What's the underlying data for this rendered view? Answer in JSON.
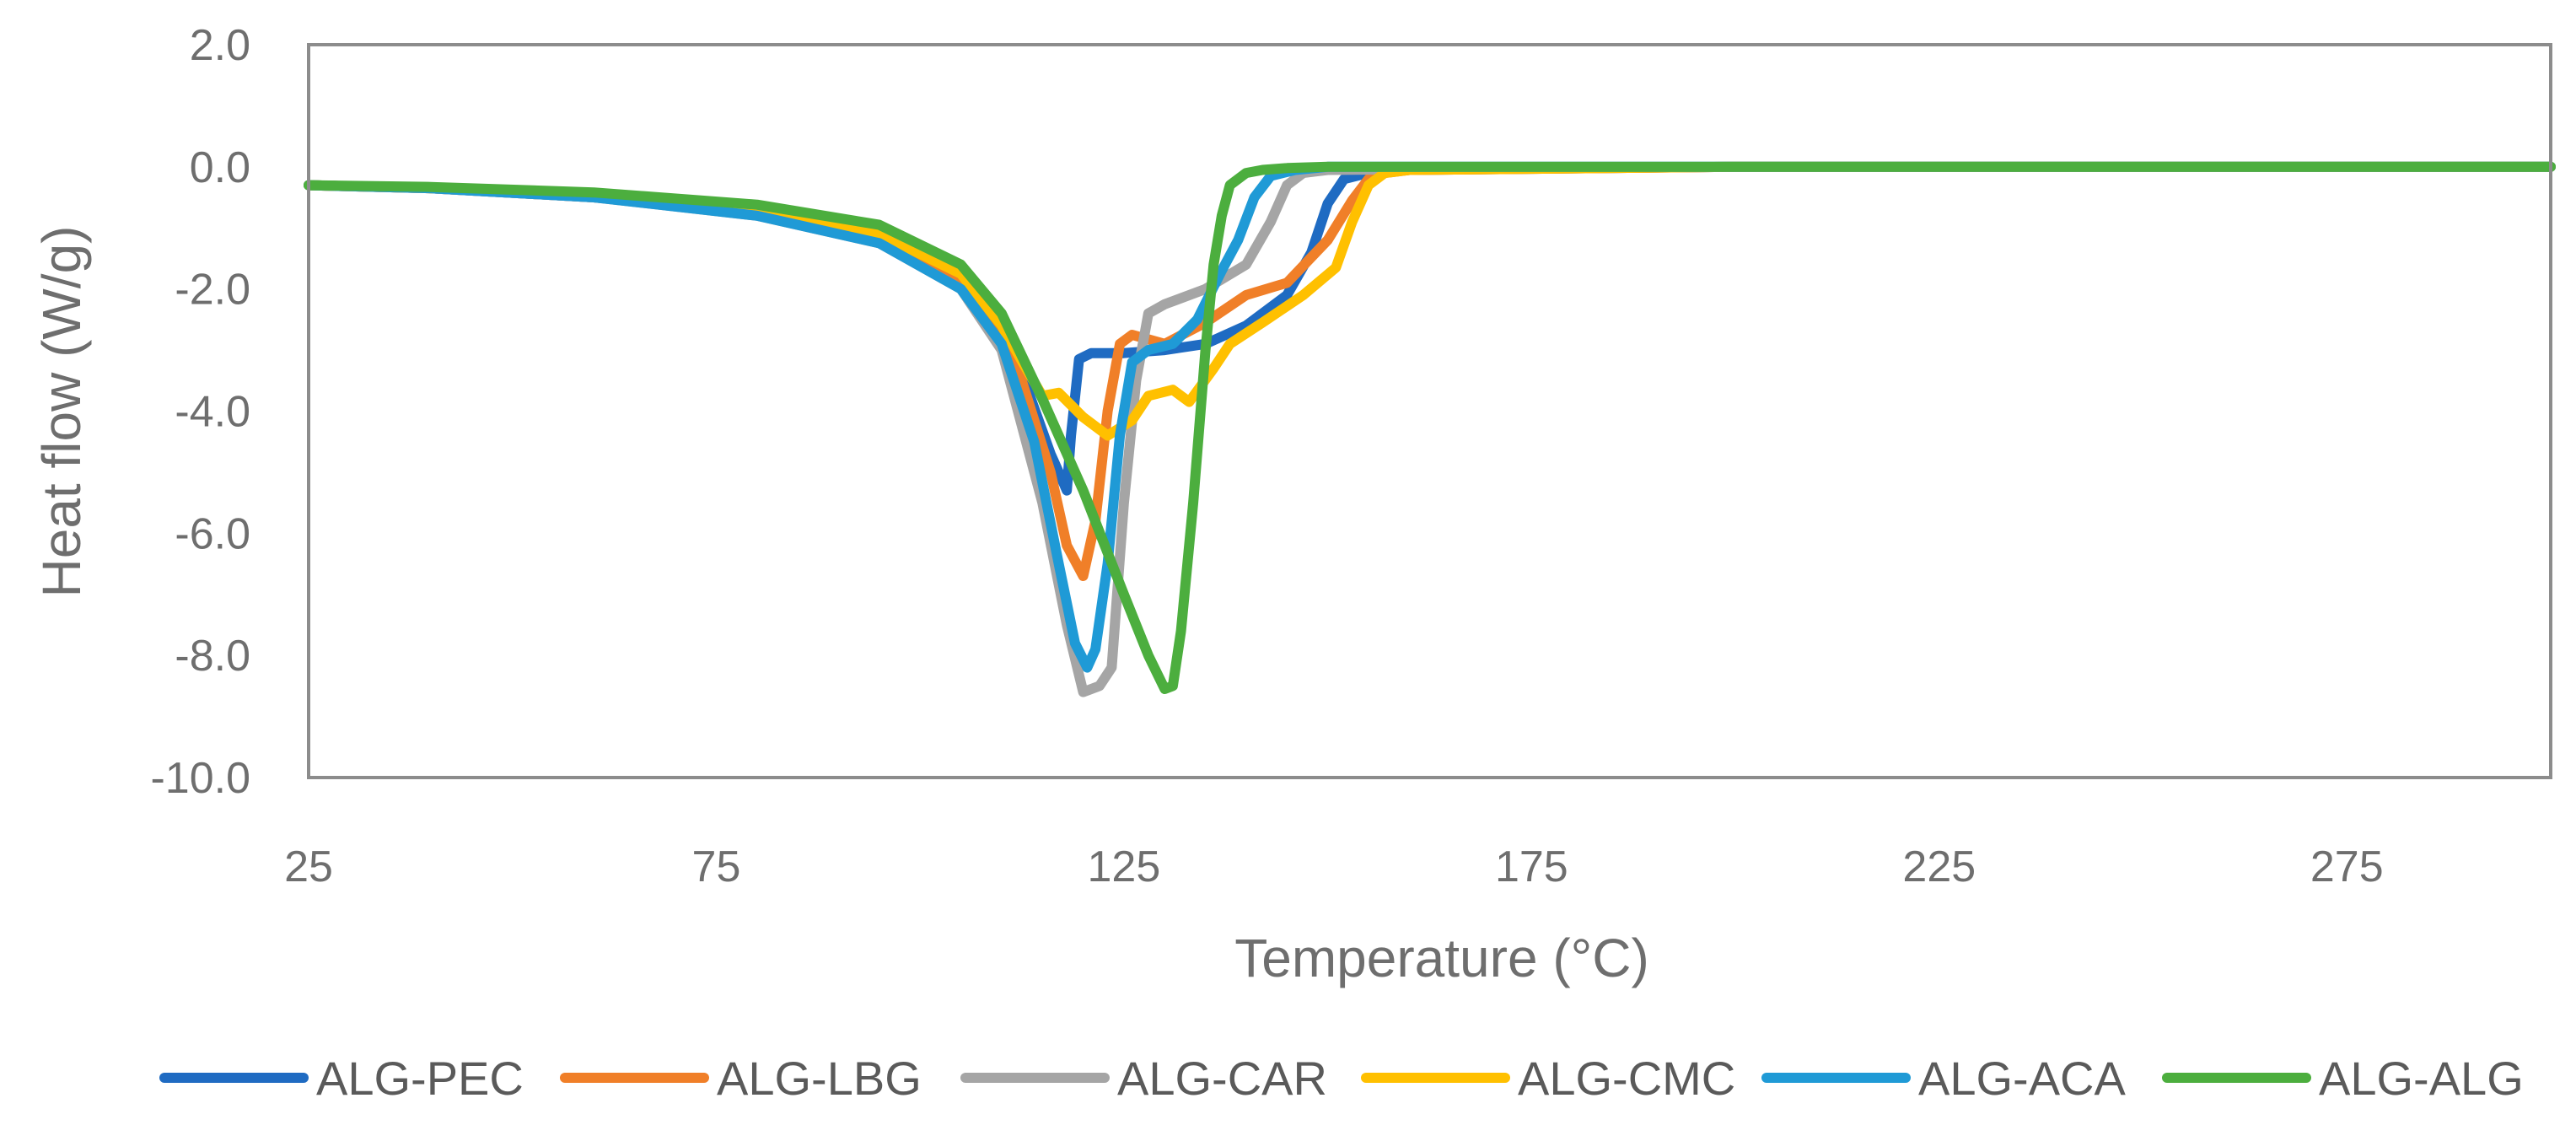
{
  "chart_data": {
    "type": "line",
    "title": "",
    "xlabel": "Temperature (°C)",
    "ylabel": "Heat flow (W/g)",
    "xlim": [
      25,
      300
    ],
    "ylim": [
      -10,
      2
    ],
    "xticks": [
      25,
      75,
      125,
      175,
      225,
      275
    ],
    "xtick_labels": [
      "25",
      "75",
      "125",
      "175",
      "225",
      "275"
    ],
    "yticks": [
      2,
      0,
      -2,
      -4,
      -6,
      -8,
      -10
    ],
    "ytick_labels": [
      "2.0",
      "0.0",
      "-2.0",
      "-4.0",
      "-6.0",
      "-8.0",
      "-10.0"
    ],
    "grid": false,
    "legend_position": "bottom",
    "series": [
      {
        "name": "ALG-PEC",
        "color": "#1f6bc2",
        "x": [
          25,
          40,
          60,
          80,
          95,
          105,
          112,
          116,
          118,
          118.5,
          119.5,
          121,
          125,
          130,
          135,
          140,
          145,
          148,
          150,
          152,
          155,
          160,
          200,
          250,
          300
        ],
        "y": [
          -0.3,
          -0.35,
          -0.5,
          -0.75,
          -1.15,
          -1.9,
          -3.2,
          -4.7,
          -5.3,
          -4.4,
          -3.15,
          -3.05,
          -3.05,
          -3.0,
          -2.9,
          -2.6,
          -2.1,
          -1.4,
          -0.6,
          -0.2,
          -0.1,
          -0.05,
          0.0,
          0.0,
          0.0
        ]
      },
      {
        "name": "ALG-LBG",
        "color": "#f07f28",
        "x": [
          25,
          40,
          60,
          80,
          95,
          105,
          112,
          116,
          118,
          120,
          121.5,
          123,
          124.5,
          126,
          130,
          135,
          140,
          145,
          150,
          153,
          155,
          157,
          160,
          200,
          250,
          300
        ],
        "y": [
          -0.3,
          -0.35,
          -0.5,
          -0.75,
          -1.15,
          -1.9,
          -3.3,
          -5.0,
          -6.2,
          -6.7,
          -5.8,
          -4.0,
          -2.9,
          -2.75,
          -2.9,
          -2.55,
          -2.1,
          -1.9,
          -1.2,
          -0.55,
          -0.2,
          -0.1,
          -0.05,
          0.0,
          0.0,
          0.0
        ]
      },
      {
        "name": "ALG-CAR",
        "color": "#a5a5a5",
        "x": [
          25,
          40,
          60,
          80,
          95,
          105,
          110,
          115,
          118,
          120,
          122,
          123.5,
          125,
          126.5,
          128,
          130,
          135,
          140,
          143,
          145,
          147,
          150,
          200,
          250,
          300
        ],
        "y": [
          -0.3,
          -0.35,
          -0.5,
          -0.8,
          -1.25,
          -2.0,
          -3.0,
          -5.5,
          -7.5,
          -8.6,
          -8.5,
          -8.2,
          -5.5,
          -3.5,
          -2.4,
          -2.25,
          -2.0,
          -1.6,
          -0.9,
          -0.3,
          -0.1,
          -0.05,
          0.0,
          0.0,
          0.0
        ]
      },
      {
        "name": "ALG-CMC",
        "color": "#ffc000",
        "x": [
          25,
          40,
          60,
          80,
          95,
          105,
          110,
          113,
          115,
          117,
          120,
          123,
          126,
          128,
          131,
          133,
          136,
          138,
          142,
          147,
          151,
          153,
          155,
          157,
          160,
          200,
          250,
          300
        ],
        "y": [
          -0.3,
          -0.35,
          -0.48,
          -0.72,
          -1.1,
          -1.75,
          -2.6,
          -3.3,
          -3.75,
          -3.7,
          -4.1,
          -4.4,
          -4.15,
          -3.75,
          -3.65,
          -3.85,
          -3.3,
          -2.9,
          -2.55,
          -2.1,
          -1.65,
          -0.9,
          -0.3,
          -0.1,
          -0.05,
          0.0,
          0.0,
          0.0
        ]
      },
      {
        "name": "ALG-ACA",
        "color": "#1f9ad6",
        "x": [
          25,
          40,
          60,
          80,
          95,
          105,
          110,
          114,
          117,
          119,
          120.5,
          121.5,
          123,
          124.5,
          126,
          128,
          131,
          134,
          137,
          139,
          141,
          143,
          146,
          150,
          200,
          250,
          300
        ],
        "y": [
          -0.3,
          -0.35,
          -0.5,
          -0.8,
          -1.25,
          -2.0,
          -2.9,
          -4.5,
          -6.5,
          -7.8,
          -8.2,
          -7.9,
          -6.5,
          -4.4,
          -3.2,
          -3.0,
          -2.9,
          -2.5,
          -1.7,
          -1.2,
          -0.5,
          -0.15,
          -0.05,
          0.0,
          0.0,
          0.0,
          0.0
        ]
      },
      {
        "name": "ALG-ALG",
        "color": "#4cae3e",
        "x": [
          25,
          40,
          60,
          80,
          95,
          105,
          110,
          115,
          120,
          125,
          128,
          130,
          131,
          132,
          133.5,
          135,
          136,
          137,
          138,
          140,
          142,
          145,
          150,
          200,
          250,
          300
        ],
        "y": [
          -0.3,
          -0.33,
          -0.42,
          -0.62,
          -0.95,
          -1.6,
          -2.4,
          -3.8,
          -5.3,
          -7.0,
          -8.0,
          -8.55,
          -8.5,
          -7.6,
          -5.5,
          -3.0,
          -1.6,
          -0.8,
          -0.3,
          -0.1,
          -0.05,
          -0.02,
          0.0,
          0.0,
          0.0,
          0.0
        ]
      }
    ]
  }
}
